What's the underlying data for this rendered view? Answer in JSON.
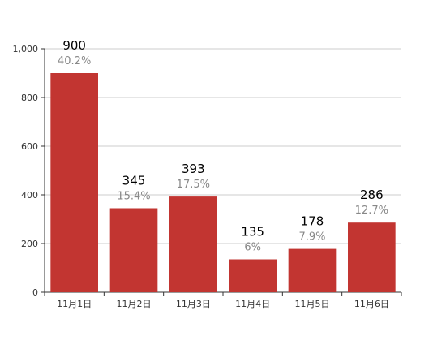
{
  "chart_data": {
    "type": "bar",
    "categories": [
      "11月1日",
      "11月2日",
      "11月3日",
      "11月4日",
      "11月5日",
      "11月6日"
    ],
    "values": [
      900,
      345,
      393,
      135,
      178,
      286
    ],
    "percent_labels": [
      "40.2%",
      "15.4%",
      "17.5%",
      "6%",
      "7.9%",
      "12.7%"
    ],
    "y_ticks": [
      "0",
      "200",
      "400",
      "600",
      "800",
      "1,000"
    ],
    "ylim": [
      0,
      1000
    ],
    "grid": true,
    "colors": {
      "bar": "#c23531",
      "grid": "#cccccc",
      "axis": "#333333"
    }
  }
}
